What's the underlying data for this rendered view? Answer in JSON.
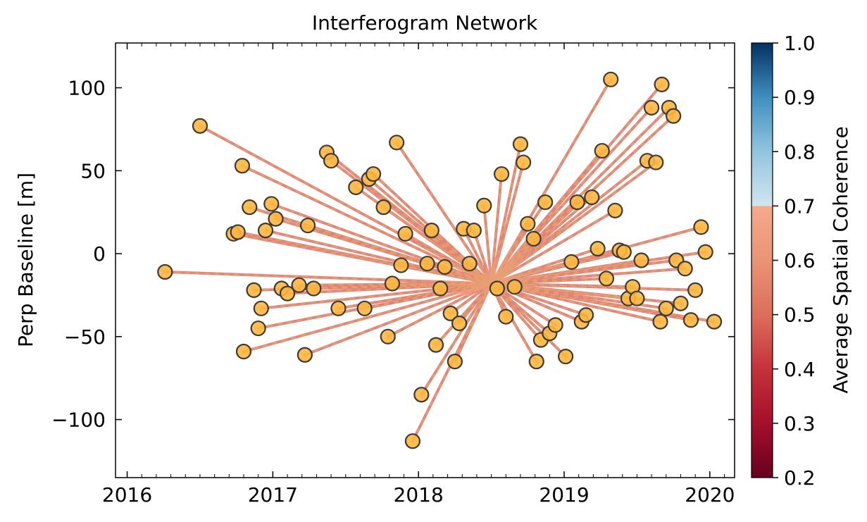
{
  "chart_data": {
    "type": "scatter",
    "title": "Interferogram Network",
    "xlabel": "",
    "ylabel": "Perp Baseline [m]",
    "xlim": [
      2015.92,
      2020.17
    ],
    "ylim": [
      -135,
      127
    ],
    "xticks": [
      2016,
      2017,
      2018,
      2019,
      2020
    ],
    "xtick_labels": [
      "2016",
      "2017",
      "2018",
      "2019",
      "2020"
    ],
    "yticks": [
      -100,
      -50,
      0,
      50,
      100
    ],
    "ytick_labels": [
      "−100",
      "−50",
      "0",
      "50",
      "100"
    ],
    "grid": false,
    "legend": "none",
    "reference_date": {
      "x": 2018.5,
      "y": -18
    },
    "acquisitions": [
      {
        "x": 2016.26,
        "y": -11
      },
      {
        "x": 2016.5,
        "y": 77
      },
      {
        "x": 2016.73,
        "y": 12
      },
      {
        "x": 2016.76,
        "y": 13
      },
      {
        "x": 2016.79,
        "y": 53
      },
      {
        "x": 2016.8,
        "y": -59
      },
      {
        "x": 2016.84,
        "y": 28
      },
      {
        "x": 2016.87,
        "y": -22
      },
      {
        "x": 2016.9,
        "y": -45
      },
      {
        "x": 2016.92,
        "y": -33
      },
      {
        "x": 2016.95,
        "y": 14
      },
      {
        "x": 2016.99,
        "y": 30
      },
      {
        "x": 2017.02,
        "y": 21
      },
      {
        "x": 2017.06,
        "y": -21
      },
      {
        "x": 2017.1,
        "y": -24
      },
      {
        "x": 2017.18,
        "y": -19
      },
      {
        "x": 2017.22,
        "y": -61
      },
      {
        "x": 2017.24,
        "y": 17
      },
      {
        "x": 2017.28,
        "y": -21
      },
      {
        "x": 2017.37,
        "y": 61
      },
      {
        "x": 2017.4,
        "y": 56
      },
      {
        "x": 2017.45,
        "y": -33
      },
      {
        "x": 2017.57,
        "y": 40
      },
      {
        "x": 2017.63,
        "y": -33
      },
      {
        "x": 2017.66,
        "y": 45
      },
      {
        "x": 2017.69,
        "y": 48
      },
      {
        "x": 2017.76,
        "y": 28
      },
      {
        "x": 2017.79,
        "y": -50
      },
      {
        "x": 2017.82,
        "y": -18
      },
      {
        "x": 2017.85,
        "y": 67
      },
      {
        "x": 2017.88,
        "y": -7
      },
      {
        "x": 2017.91,
        "y": 12
      },
      {
        "x": 2017.96,
        "y": -113
      },
      {
        "x": 2018.02,
        "y": -85
      },
      {
        "x": 2018.06,
        "y": -6
      },
      {
        "x": 2018.09,
        "y": 14
      },
      {
        "x": 2018.12,
        "y": -55
      },
      {
        "x": 2018.15,
        "y": -21
      },
      {
        "x": 2018.18,
        "y": -8
      },
      {
        "x": 2018.22,
        "y": -36
      },
      {
        "x": 2018.25,
        "y": -65
      },
      {
        "x": 2018.28,
        "y": -42
      },
      {
        "x": 2018.31,
        "y": 15
      },
      {
        "x": 2018.35,
        "y": -6
      },
      {
        "x": 2018.38,
        "y": 14
      },
      {
        "x": 2018.45,
        "y": 29
      },
      {
        "x": 2018.54,
        "y": -21
      },
      {
        "x": 2018.57,
        "y": 48
      },
      {
        "x": 2018.6,
        "y": -38
      },
      {
        "x": 2018.66,
        "y": -20
      },
      {
        "x": 2018.7,
        "y": 66
      },
      {
        "x": 2018.72,
        "y": 55
      },
      {
        "x": 2018.75,
        "y": 18
      },
      {
        "x": 2018.79,
        "y": 9
      },
      {
        "x": 2018.81,
        "y": -65
      },
      {
        "x": 2018.84,
        "y": -52
      },
      {
        "x": 2018.87,
        "y": 31
      },
      {
        "x": 2018.9,
        "y": -48
      },
      {
        "x": 2018.94,
        "y": -43
      },
      {
        "x": 2019.01,
        "y": -62
      },
      {
        "x": 2019.05,
        "y": -5
      },
      {
        "x": 2019.09,
        "y": 31
      },
      {
        "x": 2019.12,
        "y": -41
      },
      {
        "x": 2019.15,
        "y": -37
      },
      {
        "x": 2019.19,
        "y": 34
      },
      {
        "x": 2019.23,
        "y": 3
      },
      {
        "x": 2019.26,
        "y": 62
      },
      {
        "x": 2019.29,
        "y": -15
      },
      {
        "x": 2019.32,
        "y": 105
      },
      {
        "x": 2019.35,
        "y": 26
      },
      {
        "x": 2019.38,
        "y": 2
      },
      {
        "x": 2019.41,
        "y": 1
      },
      {
        "x": 2019.44,
        "y": -27
      },
      {
        "x": 2019.47,
        "y": -20
      },
      {
        "x": 2019.5,
        "y": -27
      },
      {
        "x": 2019.53,
        "y": -4
      },
      {
        "x": 2019.57,
        "y": 56
      },
      {
        "x": 2019.6,
        "y": 88
      },
      {
        "x": 2019.63,
        "y": 55
      },
      {
        "x": 2019.66,
        "y": -41
      },
      {
        "x": 2019.67,
        "y": 102
      },
      {
        "x": 2019.7,
        "y": -33
      },
      {
        "x": 2019.72,
        "y": 88
      },
      {
        "x": 2019.75,
        "y": 83
      },
      {
        "x": 2019.77,
        "y": -4
      },
      {
        "x": 2019.8,
        "y": -30
      },
      {
        "x": 2019.83,
        "y": -9
      },
      {
        "x": 2019.87,
        "y": -40
      },
      {
        "x": 2019.9,
        "y": -22
      },
      {
        "x": 2019.94,
        "y": 16
      },
      {
        "x": 2019.97,
        "y": 1
      },
      {
        "x": 2020.03,
        "y": -41
      }
    ],
    "line_coherence": 0.56,
    "colors": {
      "marker_fill": "#fdb63e",
      "marker_edge": "#3a3a3a",
      "line_low": "#df8174",
      "line_high": "#efaa8e",
      "dash": "#e8a06e"
    },
    "colorbar": {
      "label": "Average Spatial Coherence",
      "range": [
        0.2,
        1.0
      ],
      "ticks": [
        0.2,
        0.3,
        0.4,
        0.5,
        0.6,
        0.7,
        0.8,
        0.9,
        1.0
      ],
      "tick_labels": [
        "0.2",
        "0.3",
        "0.4",
        "0.5",
        "0.6",
        "0.7",
        "0.8",
        "0.9",
        "1.0"
      ],
      "colormap": "RdBu (threshold 0.7)",
      "stops": [
        {
          "v": 0.2,
          "color": "#67001f"
        },
        {
          "v": 0.3,
          "color": "#a50f2b"
        },
        {
          "v": 0.4,
          "color": "#c5323a"
        },
        {
          "v": 0.5,
          "color": "#dc6e5c"
        },
        {
          "v": 0.6,
          "color": "#ea9477"
        },
        {
          "v": 0.7,
          "color": "#f4aa8a"
        },
        {
          "v": 0.7001,
          "color": "#d1e5f0"
        },
        {
          "v": 0.8,
          "color": "#92c5de"
        },
        {
          "v": 0.9,
          "color": "#3f8fc0"
        },
        {
          "v": 1.0,
          "color": "#053061"
        }
      ]
    }
  }
}
